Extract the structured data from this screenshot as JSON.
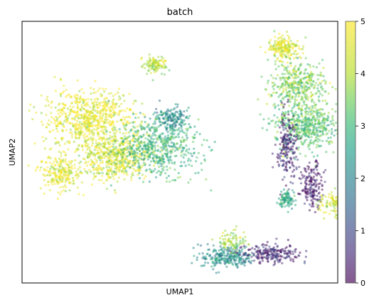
{
  "chart_data": {
    "type": "scatter",
    "title": "batch",
    "xlabel": "UMAP1",
    "ylabel": "UMAP2",
    "x_ticks_shown": false,
    "y_ticks_shown": false,
    "color_variable": "batch",
    "colormap": "viridis",
    "point_alpha": 0.5,
    "colorbar": {
      "range": [
        0,
        5
      ],
      "ticks": [
        "0",
        "1",
        "2",
        "3",
        "4",
        "5"
      ],
      "placement": "right"
    },
    "xlim": [
      0,
      100
    ],
    "ylim": [
      0,
      100
    ],
    "clusters": [
      {
        "name": "left-large-1",
        "cx": 21,
        "cy": 63,
        "rx": 13,
        "ry": 10,
        "batch": 4.9,
        "n": 700
      },
      {
        "name": "left-large-2",
        "cx": 12,
        "cy": 42,
        "rx": 6,
        "ry": 6,
        "batch": 4.9,
        "n": 220
      },
      {
        "name": "left-large-3",
        "cx": 29,
        "cy": 48,
        "rx": 11,
        "ry": 8,
        "batch": 4.7,
        "n": 520
      },
      {
        "name": "left-large-4",
        "cx": 43,
        "cy": 52,
        "rx": 12,
        "ry": 10,
        "batch": 3.3,
        "n": 560
      },
      {
        "name": "left-large-5",
        "cx": 47,
        "cy": 63,
        "rx": 5,
        "ry": 4,
        "batch": 2.4,
        "n": 150
      },
      {
        "name": "top-small",
        "cx": 42,
        "cy": 83,
        "rx": 3,
        "ry": 3,
        "batch": 4.4,
        "n": 110
      },
      {
        "name": "right-top",
        "cx": 83,
        "cy": 90,
        "rx": 5,
        "ry": 4,
        "batch": 4.8,
        "n": 200
      },
      {
        "name": "right-upper",
        "cx": 87,
        "cy": 76,
        "rx": 8,
        "ry": 8,
        "batch": 4.0,
        "n": 360
      },
      {
        "name": "right-main",
        "cx": 90,
        "cy": 60,
        "rx": 9,
        "ry": 9,
        "batch": 3.6,
        "n": 520
      },
      {
        "name": "right-purple-stream",
        "cx": 84,
        "cy": 52,
        "rx": 3,
        "ry": 12,
        "batch": 0.5,
        "n": 200
      },
      {
        "name": "right-mid-purple",
        "cx": 92,
        "cy": 37,
        "rx": 3,
        "ry": 8,
        "batch": 0.3,
        "n": 170
      },
      {
        "name": "right-mid-small",
        "cx": 84,
        "cy": 32,
        "rx": 2.5,
        "ry": 3,
        "batch": 3.0,
        "n": 90
      },
      {
        "name": "right-lower",
        "cx": 101,
        "cy": 30,
        "rx": 6,
        "ry": 4,
        "batch": 4.6,
        "n": 200
      },
      {
        "name": "bottom-teal",
        "cx": 65,
        "cy": 10,
        "rx": 8,
        "ry": 4,
        "batch": 2.5,
        "n": 260
      },
      {
        "name": "bottom-purple",
        "cx": 79,
        "cy": 11,
        "rx": 8,
        "ry": 3,
        "batch": 0.5,
        "n": 220
      },
      {
        "name": "bottom-yellow",
        "cx": 67,
        "cy": 16,
        "rx": 4,
        "ry": 4,
        "batch": 4.3,
        "n": 80
      }
    ]
  }
}
